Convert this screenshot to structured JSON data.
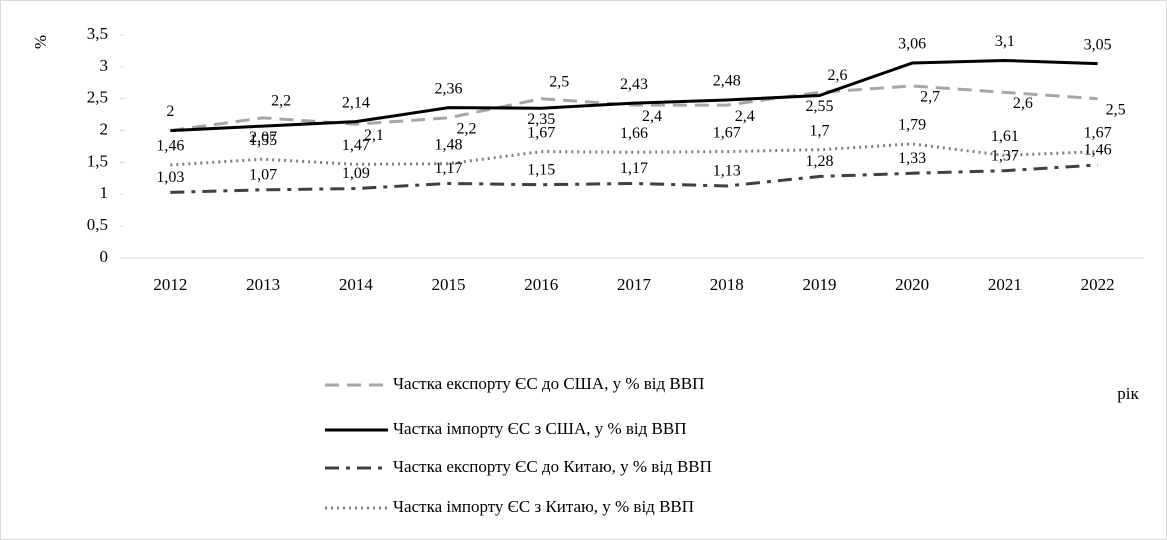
{
  "chart_data": {
    "type": "line",
    "y_label": "%",
    "x_label": "рік",
    "categories": [
      "2012",
      "2013",
      "2014",
      "2015",
      "2016",
      "2017",
      "2018",
      "2019",
      "2020",
      "2021",
      "2022"
    ],
    "series": [
      {
        "name": "Частка експорту ЄС до США, у % від ВВП",
        "color": "#a6a6a6",
        "dash": "dashed",
        "values": [
          2,
          2.2,
          2.1,
          2.2,
          2.5,
          2.4,
          2.4,
          2.6,
          2.7,
          2.6,
          2.5
        ],
        "value_labels": [
          null,
          "2,2",
          "2,1",
          "2,2",
          "2,5",
          "2,4",
          "2,4",
          "2,6",
          "2,7",
          "2,6",
          "2,5"
        ]
      },
      {
        "name": "Частка імпорту ЄС з США, у % від ВВП",
        "color": "#000000",
        "dash": "solid",
        "values": [
          2,
          2.07,
          2.14,
          2.36,
          2.35,
          2.43,
          2.48,
          2.55,
          3.06,
          3.1,
          3.05
        ],
        "value_labels": [
          "2",
          "2,07",
          "2,14",
          "2,36",
          "2,35",
          "2,43",
          "2,48",
          "2,55",
          "3,06",
          "3,1",
          "3,05"
        ]
      },
      {
        "name": "Частка експорту ЄС до Китаю, у % від ВВП",
        "color": "#404040",
        "dash": "dashdot",
        "values": [
          1.03,
          1.07,
          1.09,
          1.17,
          1.15,
          1.17,
          1.13,
          1.28,
          1.33,
          1.37,
          1.46
        ],
        "value_labels": [
          "1,03",
          "1,07",
          "1,09",
          "1,17",
          "1,15",
          "1,17",
          "1,13",
          "1,28",
          "1,33",
          "1,37",
          "1,46"
        ]
      },
      {
        "name": "Частка імпорту ЄС з Китаю, у % від ВВП",
        "color": "#7f7f7f",
        "dash": "dotted",
        "values": [
          1.46,
          1.55,
          1.47,
          1.48,
          1.67,
          1.66,
          1.67,
          1.7,
          1.79,
          1.61,
          1.67
        ],
        "value_labels": [
          "1,46",
          "1,55",
          "1,47",
          "1,48",
          "1,67",
          "1,66",
          "1,67",
          "1,7",
          "1,79",
          "1,61",
          "1,67"
        ]
      }
    ],
    "ylim": [
      0,
      3.5
    ],
    "yticks": [
      0,
      {
        "value": 0.5,
        "label": "0,5"
      },
      1,
      {
        "value": 1.5,
        "label": "1,5"
      },
      2,
      {
        "value": 2.5,
        "label": "2,5"
      },
      3,
      {
        "value": 3.5,
        "label": "3,5"
      }
    ],
    "grid": false,
    "legend": "bottom"
  }
}
